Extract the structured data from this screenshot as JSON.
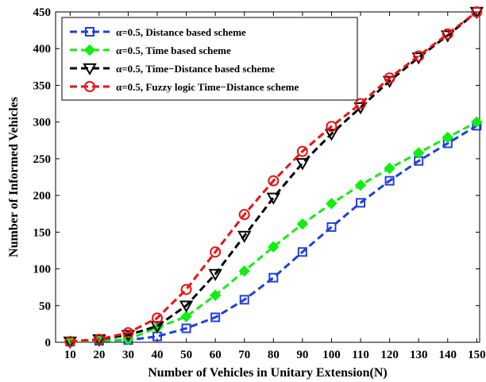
{
  "chart_data": {
    "type": "line",
    "xlabel": "Number of Vehicles in Unitary Extension(N)",
    "ylabel": "Number of Informed Vehicles",
    "x": [
      10,
      20,
      30,
      40,
      50,
      60,
      70,
      80,
      90,
      100,
      110,
      120,
      130,
      140,
      150
    ],
    "xlim": [
      5,
      151
    ],
    "ylim": [
      0,
      450
    ],
    "xticks": [
      "10",
      "20",
      "30",
      "40",
      "50",
      "60",
      "70",
      "80",
      "90",
      "100",
      "110",
      "120",
      "130",
      "140",
      "150"
    ],
    "yticks": [
      "0",
      "50",
      "100",
      "150",
      "200",
      "250",
      "300",
      "350",
      "400",
      "450"
    ],
    "grid": false,
    "legend_position": "top-left",
    "series": [
      {
        "name": "α=0.5, Distance based scheme",
        "color": "#1f3fe0",
        "marker": "square",
        "values": [
          1,
          2,
          3,
          8,
          19,
          34,
          58,
          88,
          123,
          157,
          190,
          220,
          247,
          271,
          295
        ]
      },
      {
        "name": "α=0.5, Time based scheme",
        "color": "#11ee11",
        "marker": "diamond",
        "values": [
          1,
          2,
          4,
          20,
          35,
          64,
          97,
          130,
          161,
          189,
          214,
          237,
          258,
          279,
          300
        ]
      },
      {
        "name": "α=0.5, Time−Distance based scheme",
        "color": "#000000",
        "marker": "triangle-down",
        "values": [
          1,
          4,
          10,
          22,
          50,
          93,
          145,
          197,
          244,
          284,
          320,
          356,
          388,
          418,
          450
        ]
      },
      {
        "name": "α=0.5, Fuzzy logic Time−Distance scheme",
        "color": "#ee1111",
        "marker": "circle",
        "values": [
          1,
          4,
          13,
          33,
          72,
          123,
          174,
          220,
          260,
          294,
          325,
          360,
          390,
          420,
          450
        ]
      }
    ]
  }
}
